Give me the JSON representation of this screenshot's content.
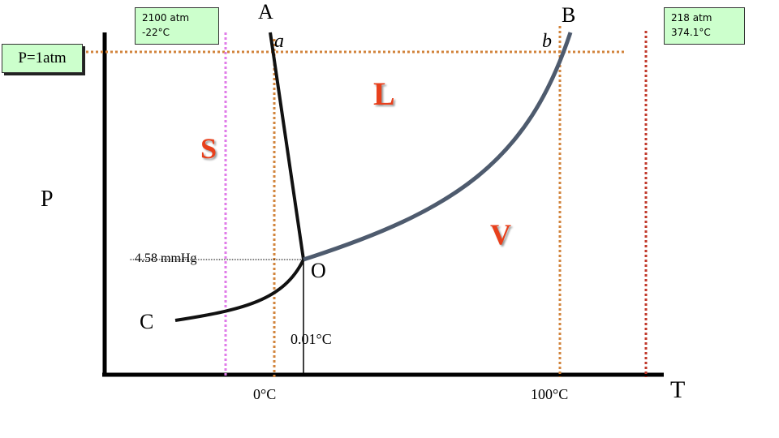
{
  "diagram": {
    "triple_pressure_label": "4.58 mmHg",
    "triple_point_label": "O",
    "triple_temp_label": "0.01°C",
    "pressure_axis_label": "P",
    "temperature_axis_label": "T",
    "zero_celsius_label": "0°C",
    "hundred_celsius_label": "100°C",
    "fusion_curve_end_label": "A",
    "vapor_curve_end_label": "B",
    "sublimation_curve_end_label": "C",
    "melting_point_label": "a",
    "boiling_point_label": "b",
    "one_atm_label": "P=1atm",
    "ice_limit_box": {
      "pressure": "2100 atm",
      "temperature": "-22°C"
    },
    "critical_point_box": {
      "pressure": "218 atm",
      "temperature": "374.1°C"
    },
    "regions": {
      "solid": "S",
      "liquid": "L",
      "vapor": "V"
    },
    "colors": {
      "curve_vapor": "#4e5b6e",
      "curve_fusion": "#111111",
      "dotted_guides": "#d2843c",
      "critical_guide": "#c0392b",
      "ice_guide": "#e07ce8",
      "region_text": "#e8401c",
      "box_fill": "#ccffcc"
    }
  }
}
